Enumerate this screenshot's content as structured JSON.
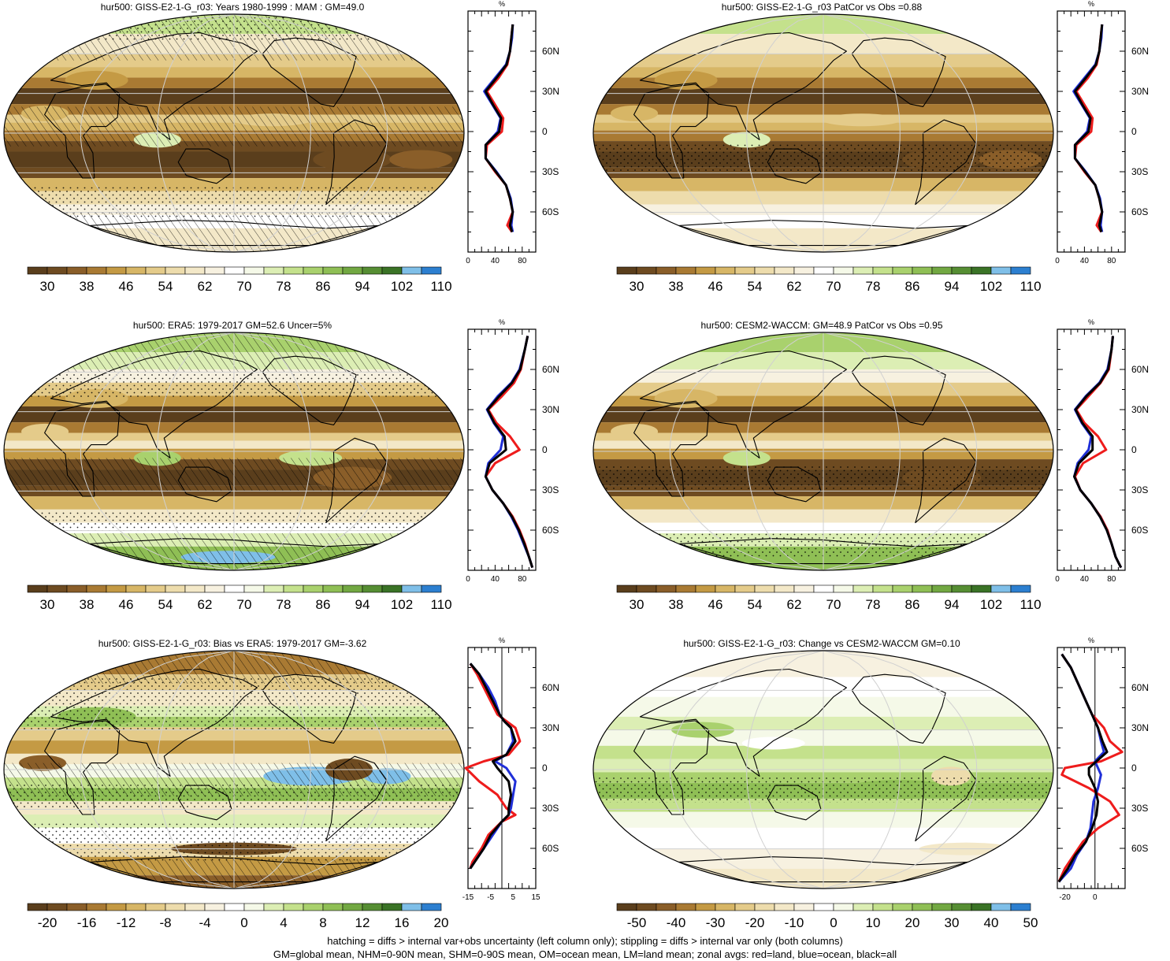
{
  "footer": {
    "line1": "hatching = diffs > internal var+obs uncertainty (left column only); stippling = diffs > internal var only (both columns)",
    "line2": "GM=global mean, NHM=0-90N mean, SHM=0-90S mean, OM=ocean mean, LM=land mean; zonal avgs: red=land, blue=ocean, black=all"
  },
  "colors": {
    "land": "#ee1c1c",
    "ocean": "#1f2fd8",
    "all": "#000000",
    "grid": "#cccccc",
    "abs_scale": [
      "#5a3e1c",
      "#6e4b21",
      "#8a5e29",
      "#a97a33",
      "#c49a44",
      "#d7b666",
      "#e4cb8a",
      "#eddcac",
      "#f3e8c8",
      "#f7f1e0",
      "#ffffff",
      "#f5f9e8",
      "#dceeb4",
      "#c4e18c",
      "#a9d16d",
      "#8fbf55",
      "#72a842",
      "#568e33",
      "#3a7326",
      "#7fbfe8",
      "#2c7fd0"
    ],
    "diff_scale": [
      "#5a3e1c",
      "#6e4b21",
      "#8a5e29",
      "#a97a33",
      "#c49a44",
      "#d7b666",
      "#e4cb8a",
      "#eddcac",
      "#f3e8c8",
      "#f7f1e0",
      "#ffffff",
      "#f5f9e8",
      "#dceeb4",
      "#c4e18c",
      "#a9d16d",
      "#8fbf55",
      "#72a842",
      "#568e33",
      "#3a7326",
      "#7fbfe8",
      "#2c7fd0"
    ]
  },
  "panels": [
    {
      "id": "p1",
      "title": "hur500: GISS-E2-1-G_r03: Years 1980-1999 : MAM : GM=49.0",
      "kind": "abs",
      "colorbar_labels": [
        "30",
        "38",
        "46",
        "54",
        "62",
        "70",
        "78",
        "86",
        "94",
        "102",
        "110"
      ],
      "chart_data": {
        "type": "line",
        "title": "",
        "xlabel": "%",
        "xticks": [
          "0",
          "40",
          "80"
        ],
        "xlim": [
          0,
          100
        ],
        "yticks": [
          "60N",
          "30N",
          "0",
          "30S",
          "60S"
        ],
        "ylim": [
          -90,
          90
        ],
        "zero_line": false,
        "series": [
          {
            "name": "land",
            "lat": [
              80,
              70,
              60,
              50,
              40,
              30,
              20,
              10,
              0,
              -10,
              -20,
              -30,
              -40,
              -50,
              -60,
              -70,
              -75
            ],
            "values": [
              66,
              64,
              62,
              58,
              45,
              28,
              40,
              52,
              50,
              28,
              26,
              40,
              56,
              62,
              66,
              58,
              65
            ]
          },
          {
            "name": "ocean",
            "lat": [
              80,
              70,
              60,
              50,
              40,
              30,
              20,
              10,
              0,
              -10,
              -20,
              -30,
              -40,
              -50,
              -60,
              -70,
              -75
            ],
            "values": [
              66,
              65,
              62,
              56,
              40,
              24,
              36,
              48,
              44,
              26,
              26,
              42,
              56,
              63,
              66,
              64,
              66
            ]
          },
          {
            "name": "all",
            "lat": [
              80,
              70,
              60,
              50,
              40,
              30,
              20,
              10,
              0,
              -10,
              -20,
              -30,
              -40,
              -50,
              -60,
              -70,
              -75
            ],
            "values": [
              66,
              64,
              62,
              57,
              42,
              26,
              37,
              49,
              46,
              26,
              26,
              41,
              56,
              62,
              66,
              62,
              65
            ]
          }
        ]
      }
    },
    {
      "id": "p2",
      "title": "hur500: GISS-E2-1-G_r03 PatCor vs Obs =0.88",
      "kind": "abs",
      "colorbar_labels": [
        "30",
        "38",
        "46",
        "54",
        "62",
        "70",
        "78",
        "86",
        "94",
        "102",
        "110"
      ],
      "chart_data": {
        "type": "line",
        "title": "",
        "xlabel": "%",
        "xticks": [
          "0",
          "40",
          "80"
        ],
        "xlim": [
          0,
          100
        ],
        "yticks": [
          "60N",
          "30N",
          "0",
          "30S",
          "60S"
        ],
        "ylim": [
          -90,
          90
        ],
        "zero_line": false,
        "series": [
          {
            "name": "land",
            "lat": [
              80,
              70,
              60,
              50,
              40,
              30,
              20,
              10,
              0,
              -10,
              -20,
              -30,
              -40,
              -50,
              -60,
              -70,
              -75
            ],
            "values": [
              66,
              64,
              62,
              58,
              45,
              28,
              40,
              52,
              50,
              28,
              26,
              40,
              56,
              62,
              66,
              58,
              65
            ]
          },
          {
            "name": "ocean",
            "lat": [
              80,
              70,
              60,
              50,
              40,
              30,
              20,
              10,
              0,
              -10,
              -20,
              -30,
              -40,
              -50,
              -60,
              -70,
              -75
            ],
            "values": [
              66,
              65,
              62,
              56,
              40,
              24,
              36,
              48,
              44,
              26,
              26,
              42,
              56,
              63,
              66,
              64,
              66
            ]
          },
          {
            "name": "all",
            "lat": [
              80,
              70,
              60,
              50,
              40,
              30,
              20,
              10,
              0,
              -10,
              -20,
              -30,
              -40,
              -50,
              -60,
              -70,
              -75
            ],
            "values": [
              66,
              64,
              62,
              57,
              42,
              26,
              37,
              49,
              46,
              26,
              26,
              41,
              56,
              62,
              66,
              62,
              65
            ]
          }
        ]
      }
    },
    {
      "id": "p3",
      "title": "hur500: ERA5: 1979-2017 GM=52.6 Uncer=5%",
      "kind": "abs",
      "colorbar_labels": [
        "30",
        "38",
        "46",
        "54",
        "62",
        "70",
        "78",
        "86",
        "94",
        "102",
        "110"
      ],
      "chart_data": {
        "type": "line",
        "title": "",
        "xlabel": "%",
        "xticks": [
          "0",
          "40",
          "80"
        ],
        "xlim": [
          0,
          100
        ],
        "yticks": [
          "60N",
          "30N",
          "0",
          "30S",
          "60S"
        ],
        "ylim": [
          -90,
          90
        ],
        "zero_line": false,
        "series": [
          {
            "name": "land",
            "lat": [
              85,
              75,
              60,
              50,
              40,
              30,
              20,
              10,
              0,
              -10,
              -20,
              -30,
              -40,
              -50,
              -60,
              -70,
              -80,
              -88
            ],
            "values": [
              88,
              84,
              78,
              68,
              50,
              30,
              42,
              62,
              76,
              40,
              26,
              36,
              52,
              66,
              76,
              84,
              90,
              95
            ]
          },
          {
            "name": "ocean",
            "lat": [
              85,
              75,
              60,
              50,
              40,
              30,
              20,
              10,
              0,
              -10,
              -20,
              -30,
              -40,
              -50,
              -60,
              -70,
              -80,
              -88
            ],
            "values": [
              88,
              84,
              76,
              64,
              44,
              28,
              38,
              52,
              48,
              30,
              26,
              36,
              52,
              64,
              74,
              82,
              90,
              95
            ]
          },
          {
            "name": "all",
            "lat": [
              85,
              75,
              60,
              50,
              40,
              30,
              20,
              10,
              0,
              -10,
              -20,
              -30,
              -40,
              -50,
              -60,
              -70,
              -80,
              -88
            ],
            "values": [
              88,
              84,
              77,
              65,
              46,
              29,
              39,
              54,
              56,
              32,
              26,
              36,
              52,
              65,
              75,
              83,
              90,
              95
            ]
          }
        ]
      }
    },
    {
      "id": "p4",
      "title": "hur500: CESM2-WACCM: GM=48.9 PatCor vs Obs =0.95",
      "kind": "abs",
      "colorbar_labels": [
        "30",
        "38",
        "46",
        "54",
        "62",
        "70",
        "78",
        "86",
        "94",
        "102",
        "110"
      ],
      "chart_data": {
        "type": "line",
        "title": "",
        "xlabel": "%",
        "xticks": [
          "0",
          "40",
          "80"
        ],
        "xlim": [
          0,
          100
        ],
        "yticks": [
          "60N",
          "30N",
          "0",
          "30S",
          "60S"
        ],
        "ylim": [
          -90,
          90
        ],
        "zero_line": false,
        "series": [
          {
            "name": "land",
            "lat": [
              85,
              75,
              60,
              50,
              40,
              30,
              20,
              10,
              0,
              -10,
              -20,
              -30,
              -40,
              -50,
              -60,
              -70,
              -80,
              -88
            ],
            "values": [
              82,
              80,
              76,
              64,
              46,
              28,
              40,
              60,
              72,
              38,
              26,
              34,
              50,
              64,
              74,
              80,
              86,
              94
            ]
          },
          {
            "name": "ocean",
            "lat": [
              85,
              75,
              60,
              50,
              40,
              30,
              20,
              10,
              0,
              -10,
              -20,
              -30,
              -40,
              -50,
              -60,
              -70,
              -80,
              -88
            ],
            "values": [
              82,
              80,
              74,
              62,
              42,
              26,
              36,
              50,
              46,
              30,
              25,
              34,
              50,
              63,
              73,
              80,
              86,
              94
            ]
          },
          {
            "name": "all",
            "lat": [
              85,
              75,
              60,
              50,
              40,
              30,
              20,
              10,
              0,
              -10,
              -20,
              -30,
              -40,
              -50,
              -60,
              -70,
              -80,
              -88
            ],
            "values": [
              82,
              80,
              75,
              63,
              43,
              27,
              37,
              52,
              52,
              32,
              25,
              34,
              50,
              63,
              73,
              80,
              86,
              94
            ]
          }
        ]
      }
    },
    {
      "id": "p5",
      "title": "hur500: GISS-E2-1-G_r03: Bias vs ERA5: 1979-2017 GM=-3.62",
      "kind": "diff",
      "colorbar_labels": [
        "-20",
        "-16",
        "-12",
        "-8",
        "-4",
        "0",
        "4",
        "8",
        "12",
        "16",
        "20"
      ],
      "chart_data": {
        "type": "line",
        "title": "",
        "xlabel": "%",
        "xticks": [
          "-15",
          "-5",
          "5",
          "15"
        ],
        "xlim": [
          -15,
          15
        ],
        "yticks": [
          "60N",
          "30N",
          "0",
          "30S",
          "60S"
        ],
        "ylim": [
          -90,
          90
        ],
        "zero_line": true,
        "series": [
          {
            "name": "land",
            "lat": [
              78,
              70,
              60,
              50,
              40,
              35,
              30,
              20,
              10,
              5,
              0,
              -10,
              -20,
              -30,
              -35,
              -40,
              -50,
              -60,
              -70,
              -75
            ],
            "values": [
              -14,
              -11,
              -8,
              -5,
              -2,
              2,
              6,
              8,
              3,
              -8,
              -16,
              -10,
              -2,
              2,
              6,
              0,
              -6,
              -9,
              -13,
              -14
            ]
          },
          {
            "name": "ocean",
            "lat": [
              78,
              70,
              60,
              50,
              40,
              35,
              30,
              20,
              10,
              5,
              0,
              -10,
              -20,
              -30,
              -35,
              -40,
              -50,
              -60,
              -70,
              -75
            ],
            "values": [
              -14,
              -10,
              -6,
              -3,
              -1,
              1,
              4,
              5,
              2,
              -3,
              2,
              6,
              5,
              4,
              3,
              0,
              -4,
              -8,
              -12,
              -14
            ]
          },
          {
            "name": "all",
            "lat": [
              78,
              70,
              60,
              50,
              40,
              35,
              30,
              20,
              10,
              5,
              0,
              -10,
              -20,
              -30,
              -35,
              -40,
              -50,
              -60,
              -70,
              -75
            ],
            "values": [
              -14,
              -10,
              -7,
              -4,
              -1,
              1,
              4,
              6,
              2,
              -4,
              -2,
              3,
              4,
              3,
              3,
              0,
              -5,
              -8,
              -12,
              -14
            ]
          }
        ]
      }
    },
    {
      "id": "p6",
      "title": "hur500: GISS-E2-1-G_r03: Change vs CESM2-WACCM GM=0.10",
      "kind": "diff",
      "colorbar_labels": [
        "-50",
        "-40",
        "-30",
        "-20",
        "-10",
        "0",
        "10",
        "20",
        "30",
        "40",
        "50"
      ],
      "chart_data": {
        "type": "line",
        "title": "",
        "xlabel": "%",
        "xticks": [
          "-20",
          "0"
        ],
        "xlim": [
          -25,
          20
        ],
        "yticks": [
          "60N",
          "30N",
          "0",
          "30S",
          "60S"
        ],
        "ylim": [
          -90,
          90
        ],
        "zero_line": true,
        "series": [
          {
            "name": "land",
            "lat": [
              85,
              75,
              60,
              50,
              40,
              30,
              20,
              12,
              5,
              0,
              -5,
              -15,
              -25,
              -35,
              -45,
              -55,
              -65,
              -75,
              -85
            ],
            "values": [
              -22,
              -16,
              -10,
              -6,
              -2,
              6,
              10,
              18,
              4,
              -20,
              -22,
              -4,
              10,
              16,
              2,
              -8,
              -14,
              -20,
              -24
            ]
          },
          {
            "name": "ocean",
            "lat": [
              85,
              75,
              60,
              50,
              40,
              30,
              20,
              12,
              5,
              0,
              -5,
              -15,
              -25,
              -35,
              -45,
              -55,
              -65,
              -75,
              -85
            ],
            "values": [
              -22,
              -16,
              -10,
              -6,
              -2,
              2,
              4,
              6,
              0,
              2,
              4,
              2,
              -1,
              -2,
              -3,
              -6,
              -12,
              -16,
              -24
            ]
          },
          {
            "name": "all",
            "lat": [
              85,
              75,
              60,
              50,
              40,
              30,
              20,
              12,
              5,
              0,
              -5,
              -15,
              -25,
              -35,
              -45,
              -55,
              -65,
              -75,
              -85
            ],
            "values": [
              -22,
              -16,
              -10,
              -6,
              -2,
              2,
              5,
              8,
              1,
              -4,
              -4,
              0,
              2,
              1,
              -2,
              -6,
              -13,
              -18,
              -24
            ]
          }
        ]
      }
    }
  ]
}
